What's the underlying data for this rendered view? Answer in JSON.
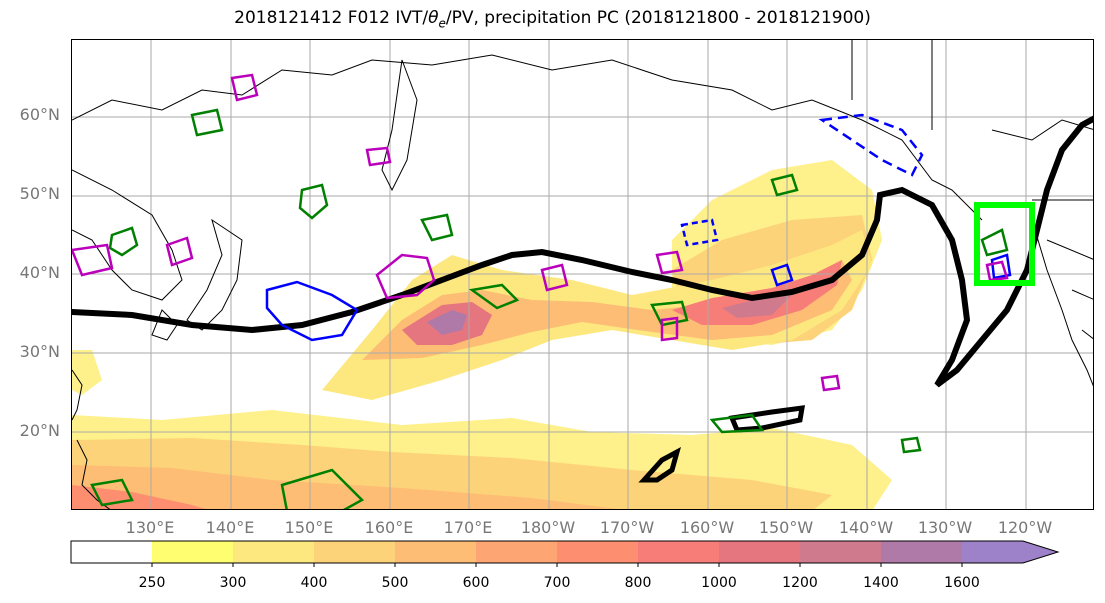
{
  "title": "2018121412 F012 IVT/θe/PV, precipitation PC (2018121800 - 2018121900)",
  "title_parts": {
    "prefix": "2018121412 F012 IVT/",
    "theta": "θ",
    "sub": "e",
    "suffix": "/PV, precipitation PC (2018121800 - 2018121900)"
  },
  "lat_labels": [
    "60°N",
    "50°N",
    "40°N",
    "30°N",
    "20°N"
  ],
  "lon_labels": [
    "130°E",
    "140°E",
    "150°E",
    "160°E",
    "170°E",
    "180°W",
    "170°W",
    "160°W",
    "150°W",
    "140°W",
    "130°W",
    "120°W"
  ],
  "colorbar": {
    "levels": [
      "250",
      "300",
      "400",
      "500",
      "600",
      "700",
      "800",
      "1000",
      "1200",
      "1400",
      "1600"
    ],
    "colors": [
      "#ffffff",
      "#fefe70",
      "#fde880",
      "#fdd37a",
      "#fdbd74",
      "#fda674",
      "#fd8f70",
      "#f77d78",
      "#e5757e",
      "#d07a8e",
      "#b07aa8",
      "#9d82c9"
    ]
  },
  "colors": {
    "jet_contour": "#000000",
    "pv_positive": "#008000",
    "pv_negative": "#0000ff",
    "theta_contour": "#bb00bb",
    "highlight_box": "#00ff00",
    "grid": "#aaaaaa",
    "coastline": "#000000"
  }
}
